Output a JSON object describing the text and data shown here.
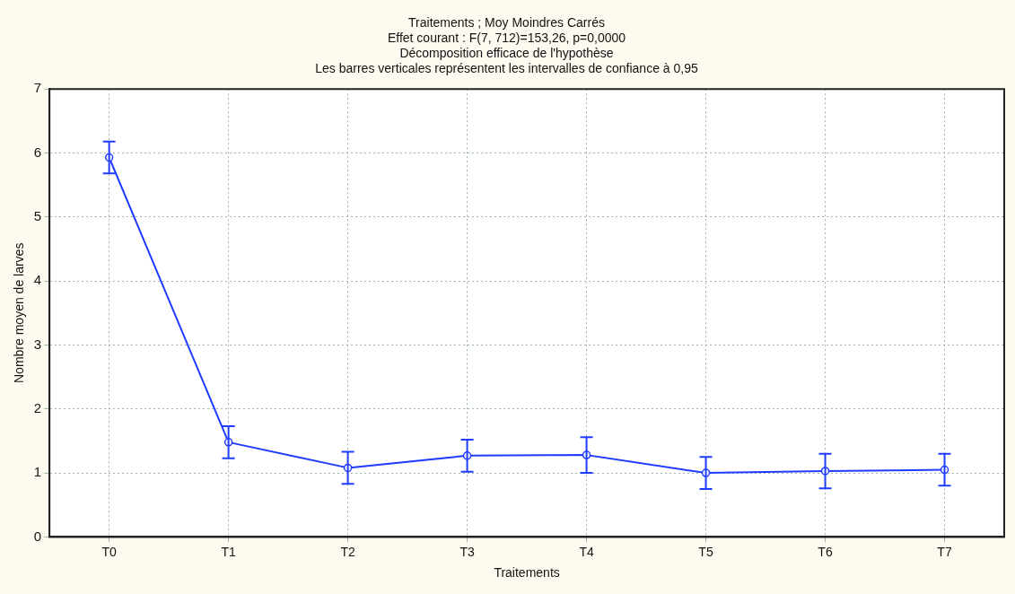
{
  "chart_data": {
    "type": "line",
    "title": "Traitements ; Moy Moindres Carrés",
    "subtitle": "Effet courant : F(7, 712)=153,26, p=0,0000",
    "annotations": [
      "Décomposition efficace de l'hypothèse",
      "Les barres verticales représentent les intervalles de confiance à 0,95"
    ],
    "xlabel": "Traitements",
    "ylabel": "Nombre moyen de larves",
    "categories": [
      "T0",
      "T1",
      "T2",
      "T3",
      "T4",
      "T5",
      "T6",
      "T7"
    ],
    "series": [
      {
        "color": "#1f3cff",
        "values": [
          5.93,
          1.48,
          1.08,
          1.27,
          1.28,
          1.0,
          1.03,
          1.05
        ],
        "errors": [
          0.25,
          0.25,
          0.25,
          0.25,
          0.28,
          0.25,
          0.27,
          0.25
        ]
      }
    ],
    "ylim": [
      0,
      7
    ],
    "yticks": [
      0,
      1,
      2,
      3,
      4,
      5,
      6,
      7
    ],
    "grid": true,
    "legend": false,
    "marker": "circle",
    "line_style": "solid"
  }
}
